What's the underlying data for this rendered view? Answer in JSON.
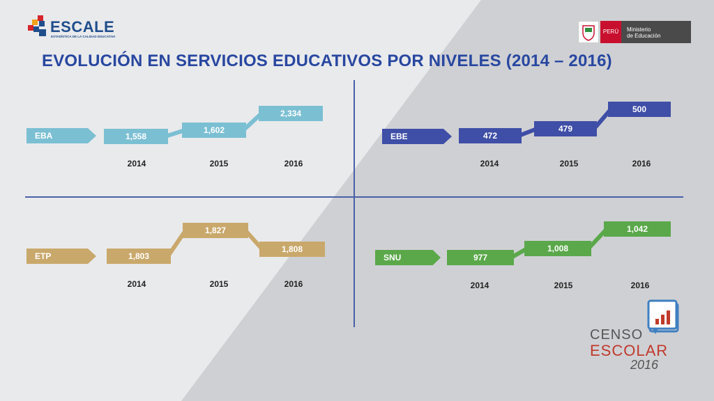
{
  "header": {
    "logo_word": "ESCALE",
    "logo_sub": "ESTADÍSTICA DE LA CALIDAD EDUCATIVA",
    "country": "PERÚ",
    "ministry_line1": "Ministerio",
    "ministry_line2": "de Educación"
  },
  "title": "EVOLUCIÓN EN SERVICIOS EDUCATIVOS POR NIVELES (2014 – 2016)",
  "colors": {
    "EBA": "#7bbfd3",
    "EBE": "#3f4ea6",
    "ETP": "#c9a86b",
    "SNU": "#5aa84a",
    "title": "#2847a0"
  },
  "chart_data": [
    {
      "type": "line",
      "label": "EBA",
      "categories": [
        "2014",
        "2015",
        "2016"
      ],
      "values": [
        1558,
        1602,
        2334
      ],
      "value_labels": [
        "1,558",
        "1,602",
        "2,334"
      ]
    },
    {
      "type": "line",
      "label": "EBE",
      "categories": [
        "2014",
        "2015",
        "2016"
      ],
      "values": [
        472,
        479,
        500
      ],
      "value_labels": [
        "472",
        "479",
        "500"
      ]
    },
    {
      "type": "line",
      "label": "ETP",
      "categories": [
        "2014",
        "2015",
        "2016"
      ],
      "values": [
        1803,
        1827,
        1808
      ],
      "value_labels": [
        "1,803",
        "1,827",
        "1,808"
      ]
    },
    {
      "type": "line",
      "label": "SNU",
      "categories": [
        "2014",
        "2015",
        "2016"
      ],
      "values": [
        977,
        1008,
        1042
      ],
      "value_labels": [
        "977",
        "1,008",
        "1,042"
      ]
    }
  ],
  "footer_logo": {
    "line1": "CENSO",
    "line2": "ESCOLAR",
    "line3": "2016"
  }
}
